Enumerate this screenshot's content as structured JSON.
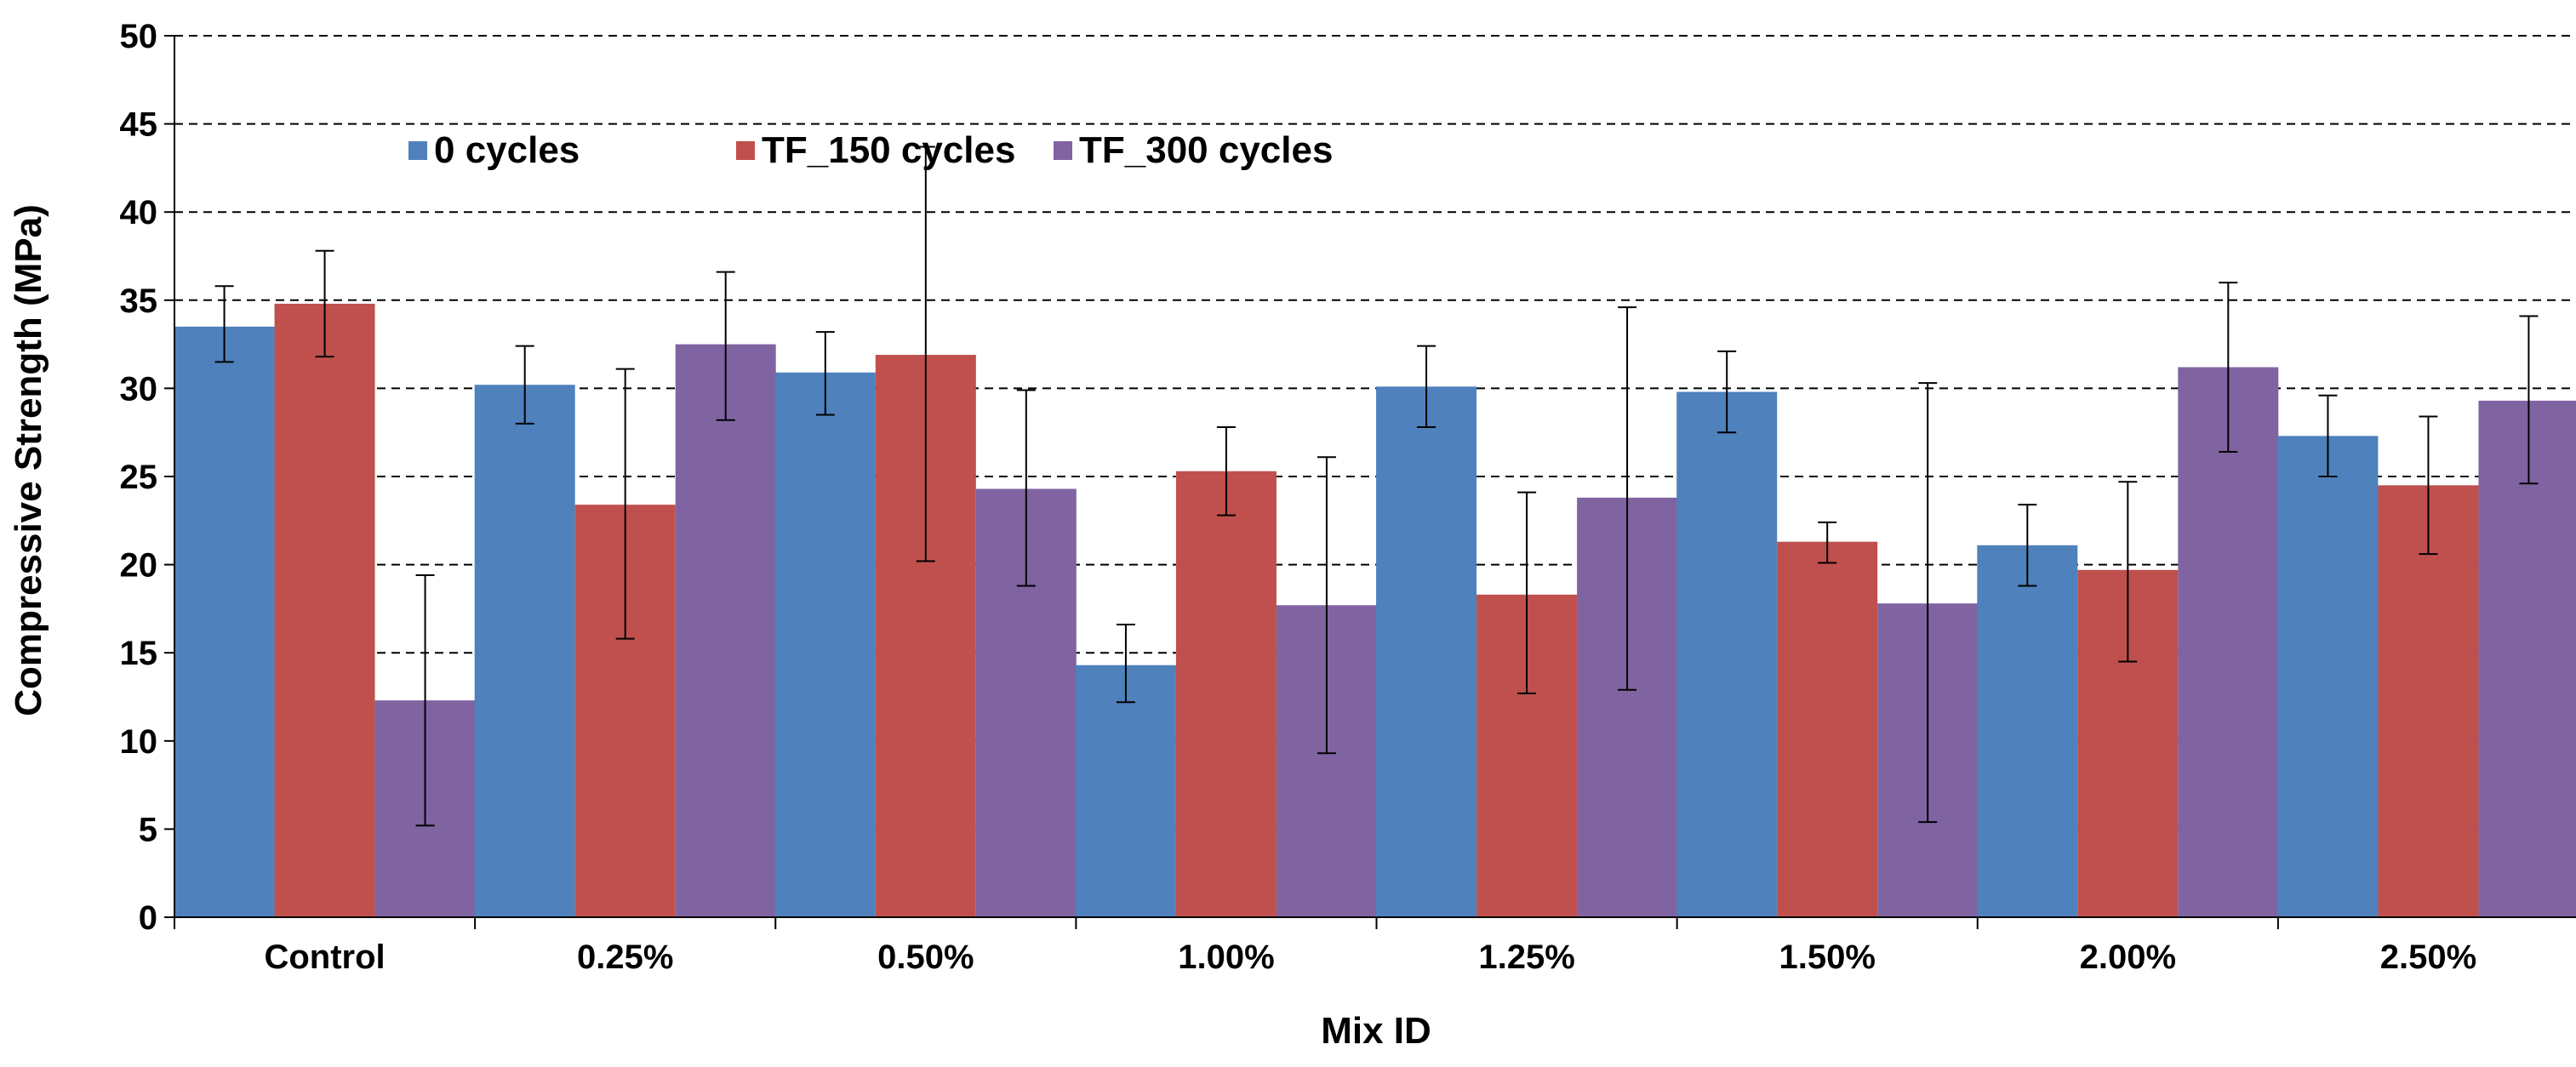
{
  "chart_data": {
    "type": "bar",
    "title": "",
    "xlabel": "Mix ID",
    "ylabel": "Compressive Strength (MPa)",
    "ylim": [
      0,
      50
    ],
    "yticks": [
      0,
      5,
      10,
      15,
      20,
      25,
      30,
      35,
      40,
      45,
      50
    ],
    "ytick_labels": [
      "0",
      "5",
      "10",
      "15",
      "20",
      "25",
      "30",
      "35",
      "40",
      "45",
      "50"
    ],
    "grid": "horizontal dashed",
    "legend_position": "top-left",
    "categories": [
      "Control",
      "0.25%",
      "0.50%",
      "1.00%",
      "1.25%",
      "1.50%",
      "2.00%",
      "2.50%"
    ],
    "series": [
      {
        "name": "0 cycles",
        "color": "#4F81BD",
        "values": [
          33.5,
          30.2,
          30.9,
          14.3,
          30.1,
          29.8,
          21.1,
          27.3
        ],
        "err_low": [
          31.5,
          28.0,
          28.5,
          12.2,
          27.8,
          27.5,
          18.8,
          25.0
        ],
        "err_high": [
          35.8,
          32.4,
          33.2,
          16.6,
          32.4,
          32.1,
          23.4,
          29.6
        ]
      },
      {
        "name": "TF_150 cycles",
        "color": "#C0504D",
        "values": [
          34.8,
          23.4,
          31.9,
          25.3,
          18.3,
          21.3,
          19.7,
          24.5
        ],
        "err_low": [
          31.8,
          15.8,
          20.2,
          22.8,
          12.7,
          20.1,
          14.5,
          20.6
        ],
        "err_high": [
          37.8,
          31.1,
          43.7,
          27.8,
          24.1,
          22.4,
          24.7,
          28.4
        ]
      },
      {
        "name": "TF_300 cycles",
        "color": "#8064A2",
        "values": [
          12.3,
          32.5,
          24.3,
          17.7,
          23.8,
          17.8,
          31.2,
          29.3
        ],
        "err_low": [
          5.2,
          28.2,
          18.8,
          9.3,
          12.9,
          5.4,
          26.4,
          24.6
        ],
        "err_high": [
          19.4,
          36.6,
          29.9,
          26.1,
          34.6,
          30.3,
          36.0,
          34.1
        ]
      }
    ]
  }
}
